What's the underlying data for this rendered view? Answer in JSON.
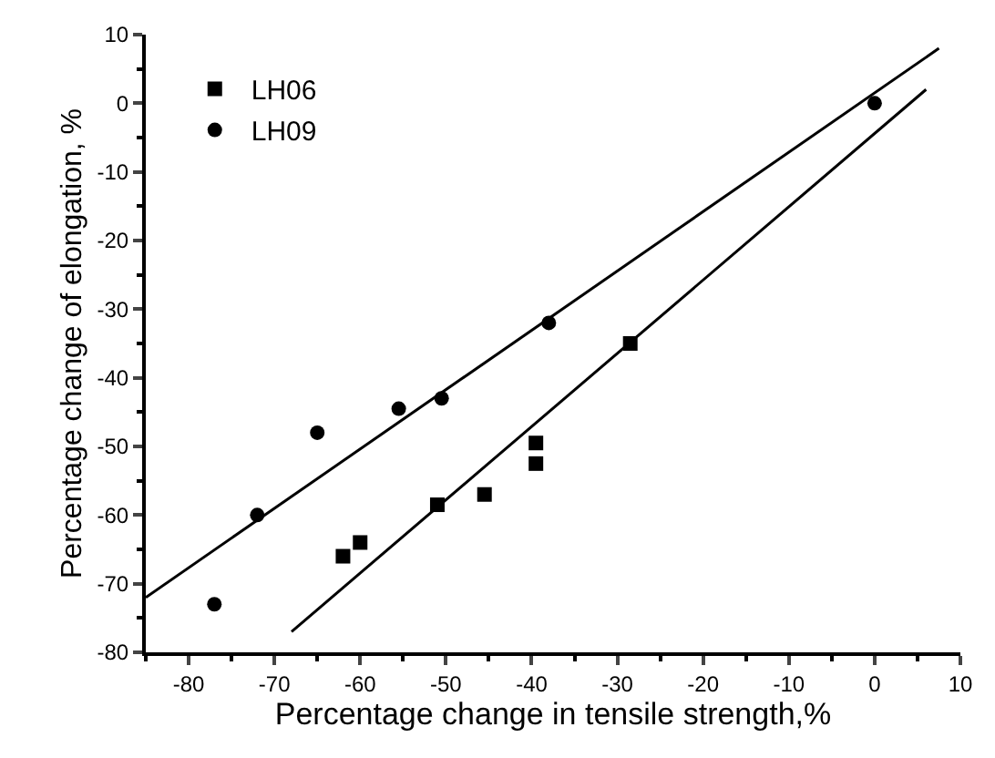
{
  "chart_data": {
    "type": "scatter",
    "xlabel": "Percentage change in tensile strength,%",
    "ylabel": "Percentage change of elongation, %",
    "xlim": [
      -85,
      10
    ],
    "xticks": [
      -80,
      -70,
      -60,
      -50,
      -40,
      -30,
      -20,
      -10,
      0,
      10
    ],
    "ylim": [
      -80,
      10
    ],
    "yticks": [
      -80,
      -70,
      -60,
      -50,
      -40,
      -30,
      -20,
      -10,
      0,
      10
    ],
    "grid": false,
    "legend": "top left",
    "series": [
      {
        "name": "LH06",
        "color": "#000000",
        "marker": "square",
        "x": [
          -62,
          -60,
          -51,
          -45.5,
          -39.5,
          -39.5,
          -28.5
        ],
        "values": [
          -66,
          -64,
          -58.5,
          -57,
          -49.5,
          -52.5,
          -35
        ]
      },
      {
        "name": "LH09",
        "color": "#000000",
        "marker": "circle",
        "x": [
          -77,
          -72,
          -65,
          -55.5,
          -50.5,
          -38,
          0
        ],
        "values": [
          -73,
          -60,
          -48,
          -44.5,
          -43,
          -32,
          0
        ]
      },
      {
        "type": "line",
        "color": "#000000",
        "line_style": "solid",
        "marker": "none",
        "x": [
          -68,
          6
        ],
        "values": [
          -77,
          2
        ]
      },
      {
        "type": "line",
        "color": "#000000",
        "line_style": "solid",
        "marker": "none",
        "x": [
          -85,
          7.5
        ],
        "values": [
          -72,
          8
        ]
      }
    ]
  }
}
